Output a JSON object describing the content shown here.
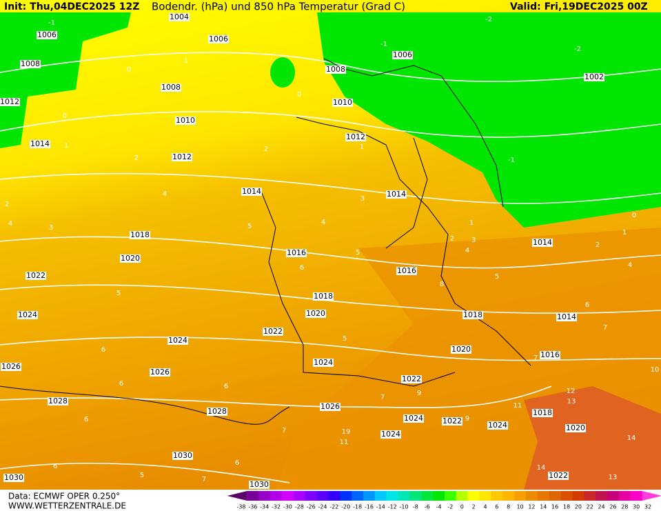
{
  "header": {
    "init": "Init: Thu,04DEC2025 12Z",
    "title": "Bodendr. (hPa) und 850 hPa Temperatur (Grad C)",
    "valid": "Valid: Fri,19DEC2025 00Z"
  },
  "footer": {
    "source": "Data: ECMWF OPER 0.250°",
    "website": "WWW.WETTERZENTRALE.DE"
  },
  "isobar_labels": [
    1004,
    1006,
    1006,
    1008,
    1008,
    1008,
    1006,
    1002,
    1012,
    1010,
    1010,
    1014,
    1012,
    1012,
    1014,
    1014,
    1018,
    1016,
    1016,
    1014,
    1020,
    1022,
    1018,
    1020,
    1018,
    1014,
    1024,
    1022,
    1024,
    1020,
    1016,
    1024,
    1026,
    1026,
    1022,
    1028,
    1028,
    1026,
    1024,
    1022,
    1024,
    1018,
    1024,
    1020,
    1030,
    1030,
    1030,
    1022
  ],
  "temperature_labels": [
    -1,
    -1,
    -2,
    -2,
    -1,
    0,
    0,
    0,
    0,
    1,
    1,
    1,
    1,
    1,
    2,
    2,
    2,
    2,
    2,
    3,
    3,
    3,
    4,
    4,
    4,
    4,
    4,
    5,
    5,
    5,
    5,
    5,
    5,
    6,
    6,
    6,
    6,
    6,
    6,
    6,
    6,
    7,
    7,
    7,
    7,
    7,
    8,
    9,
    9,
    10,
    11,
    12,
    13,
    14,
    14,
    13,
    19,
    11
  ],
  "colorbar": {
    "ticks": [
      -38,
      -36,
      -34,
      -32,
      -30,
      -28,
      -26,
      -24,
      -22,
      -20,
      -18,
      -16,
      -14,
      -12,
      -10,
      -8,
      -6,
      -4,
      -2,
      0,
      2,
      4,
      6,
      8,
      10,
      12,
      14,
      16,
      18,
      20,
      22,
      24,
      26,
      28,
      30,
      32
    ],
    "colors": [
      "#5a0068",
      "#78009a",
      "#9600c8",
      "#b400e6",
      "#d200ff",
      "#aa00ff",
      "#8000ff",
      "#5a00ff",
      "#3200ff",
      "#0032ff",
      "#0064ff",
      "#0096ff",
      "#00c8ff",
      "#00e6e6",
      "#00e6b4",
      "#00e678",
      "#00e63c",
      "#00e600",
      "#3cff00",
      "#b4ff00",
      "#ffff00",
      "#ffe600",
      "#ffc800",
      "#ffb400",
      "#f5a000",
      "#eb8c00",
      "#e67800",
      "#e06400",
      "#da5000",
      "#d23c00",
      "#c82828",
      "#be1450",
      "#c80078",
      "#e600a0",
      "#ff00c8",
      "#ff3cdc"
    ]
  }
}
